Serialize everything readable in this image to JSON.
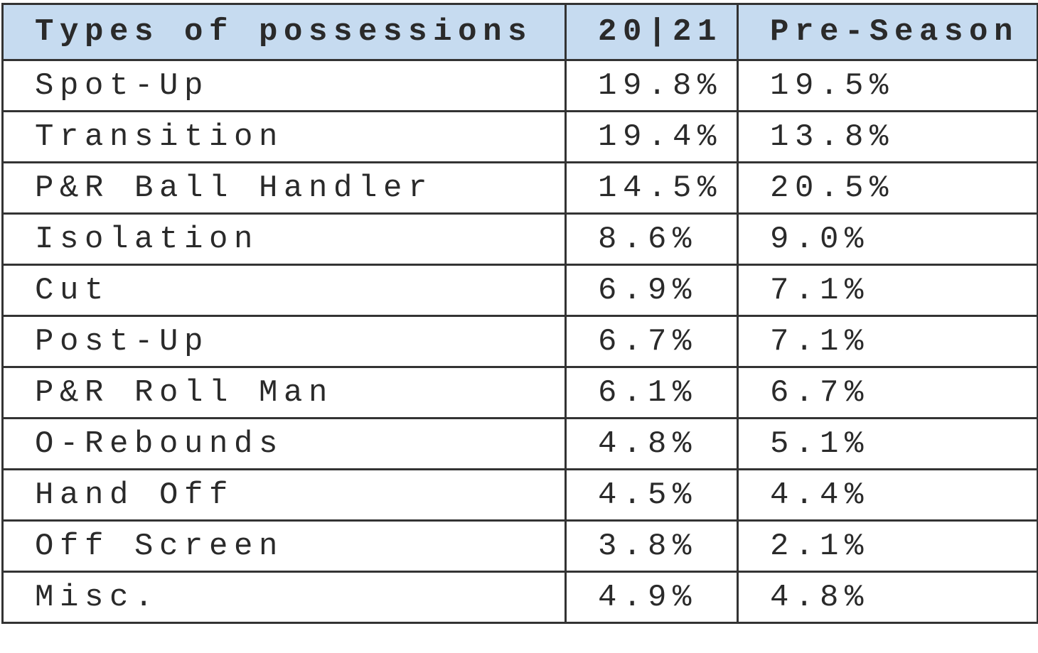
{
  "table": {
    "header": [
      "Types of possessions",
      "20|21",
      "Pre-Season"
    ],
    "rows": [
      [
        "Spot-Up",
        "19.8%",
        "19.5%"
      ],
      [
        "Transition",
        "19.4%",
        "13.8%"
      ],
      [
        "P&R Ball Handler",
        "14.5%",
        "20.5%"
      ],
      [
        "Isolation",
        "8.6%",
        "9.0%"
      ],
      [
        "Cut",
        "6.9%",
        "7.1%"
      ],
      [
        "Post-Up",
        "6.7%",
        "7.1%"
      ],
      [
        "P&R Roll Man",
        "6.1%",
        "6.7%"
      ],
      [
        "O-Rebounds",
        "4.8%",
        "5.1%"
      ],
      [
        "Hand Off",
        "4.5%",
        "4.4%"
      ],
      [
        "Off Screen",
        "3.8%",
        "2.1%"
      ],
      [
        "Misc.",
        "4.9%",
        "4.8%"
      ]
    ]
  }
}
